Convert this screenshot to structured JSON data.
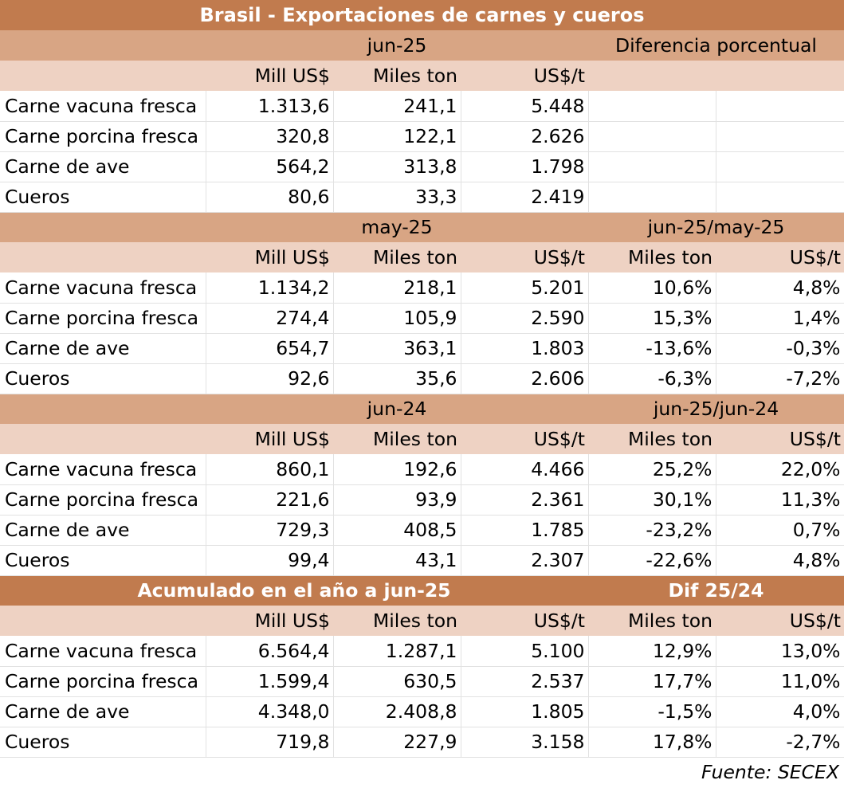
{
  "title": "Brasil - Exportaciones de carnes y cueros",
  "colors": {
    "title_bg": "#c17b4e",
    "section_bg": "#d8a584",
    "subheader_bg": "#eed2c3"
  },
  "sections": [
    {
      "period": "jun-25",
      "diff_label": "Diferencia porcentual",
      "columns": [
        "Mill US$",
        "Miles ton",
        "US$/t",
        "",
        ""
      ],
      "rows": [
        {
          "label": "Carne vacuna fresca",
          "values": [
            "1.313,6",
            "241,1",
            "5.448",
            "",
            ""
          ]
        },
        {
          "label": "Carne porcina fresca",
          "values": [
            "320,8",
            "122,1",
            "2.626",
            "",
            ""
          ]
        },
        {
          "label": "Carne de ave",
          "values": [
            "564,2",
            "313,8",
            "1.798",
            "",
            ""
          ]
        },
        {
          "label": "Cueros",
          "values": [
            "80,6",
            "33,3",
            "2.419",
            "",
            ""
          ]
        }
      ]
    },
    {
      "period": "may-25",
      "diff_label": "jun-25/may-25",
      "columns": [
        "Mill US$",
        "Miles ton",
        "US$/t",
        "Miles ton",
        "US$/t"
      ],
      "rows": [
        {
          "label": "Carne vacuna fresca",
          "values": [
            "1.134,2",
            "218,1",
            "5.201",
            "10,6%",
            "4,8%"
          ]
        },
        {
          "label": "Carne porcina fresca",
          "values": [
            "274,4",
            "105,9",
            "2.590",
            "15,3%",
            "1,4%"
          ]
        },
        {
          "label": "Carne de ave",
          "values": [
            "654,7",
            "363,1",
            "1.803",
            "-13,6%",
            "-0,3%"
          ]
        },
        {
          "label": "Cueros",
          "values": [
            "92,6",
            "35,6",
            "2.606",
            "-6,3%",
            "-7,2%"
          ]
        }
      ]
    },
    {
      "period": "jun-24",
      "diff_label": "jun-25/jun-24",
      "columns": [
        "Mill US$",
        "Miles ton",
        "US$/t",
        "Miles ton",
        "US$/t"
      ],
      "rows": [
        {
          "label": "Carne vacuna fresca",
          "values": [
            "860,1",
            "192,6",
            "4.466",
            "25,2%",
            "22,0%"
          ]
        },
        {
          "label": "Carne porcina fresca",
          "values": [
            "221,6",
            "93,9",
            "2.361",
            "30,1%",
            "11,3%"
          ]
        },
        {
          "label": "Carne de ave",
          "values": [
            "729,3",
            "408,5",
            "1.785",
            "-23,2%",
            "0,7%"
          ]
        },
        {
          "label": "Cueros",
          "values": [
            "99,4",
            "43,1",
            "2.307",
            "-22,6%",
            "4,8%"
          ]
        }
      ]
    },
    {
      "period": "Acumulado en el año a jun-25",
      "diff_label": "Dif 25/24",
      "columns": [
        "Mill US$",
        "Miles ton",
        "US$/t",
        "Miles ton",
        "US$/t"
      ],
      "rows": [
        {
          "label": "Carne vacuna fresca",
          "values": [
            "6.564,4",
            "1.287,1",
            "5.100",
            "12,9%",
            "13,0%"
          ]
        },
        {
          "label": "Carne porcina fresca",
          "values": [
            "1.599,4",
            "630,5",
            "2.537",
            "17,7%",
            "11,0%"
          ]
        },
        {
          "label": "Carne de ave",
          "values": [
            "4.348,0",
            "2.408,8",
            "1.805",
            "-1,5%",
            "4,0%"
          ]
        },
        {
          "label": "Cueros",
          "values": [
            "719,8",
            "227,9",
            "3.158",
            "17,8%",
            "-2,7%"
          ]
        }
      ]
    }
  ],
  "source": "Fuente: SECEX",
  "chart_data": {
    "type": "table",
    "title": "Brasil - Exportaciones de carnes y cueros",
    "columns": [
      "",
      "Mill US$",
      "Miles ton",
      "US$/t",
      "Miles ton",
      "US$/t"
    ],
    "categories": [
      "Carne vacuna fresca",
      "Carne porcina fresca",
      "Carne de ave",
      "Cueros"
    ],
    "blocks": [
      {
        "period": "jun-25",
        "mill_usd": [
          1313.6,
          320.8,
          564.2,
          80.6
        ],
        "miles_ton": [
          241.1,
          122.1,
          313.8,
          33.3
        ],
        "usd_t": [
          5448,
          2626,
          1798,
          2419
        ]
      },
      {
        "period": "may-25",
        "mill_usd": [
          1134.2,
          274.4,
          654.7,
          92.6
        ],
        "miles_ton": [
          218.1,
          105.9,
          363.1,
          35.6
        ],
        "usd_t": [
          5201,
          2590,
          1803,
          2606
        ],
        "diff_label": "jun-25/may-25",
        "diff_miles_ton_pct": [
          10.6,
          15.3,
          -13.6,
          -6.3
        ],
        "diff_usd_t_pct": [
          4.8,
          1.4,
          -0.3,
          -7.2
        ]
      },
      {
        "period": "jun-24",
        "mill_usd": [
          860.1,
          221.6,
          729.3,
          99.4
        ],
        "miles_ton": [
          192.6,
          93.9,
          408.5,
          43.1
        ],
        "usd_t": [
          4466,
          2361,
          1785,
          2307
        ],
        "diff_label": "jun-25/jun-24",
        "diff_miles_ton_pct": [
          25.2,
          30.1,
          -23.2,
          -22.6
        ],
        "diff_usd_t_pct": [
          22.0,
          11.3,
          0.7,
          4.8
        ]
      },
      {
        "period": "Acumulado en el año a jun-25",
        "mill_usd": [
          6564.4,
          1599.4,
          4348.0,
          719.8
        ],
        "miles_ton": [
          1287.1,
          630.5,
          2408.8,
          227.9
        ],
        "usd_t": [
          5100,
          2537,
          1805,
          3158
        ],
        "diff_label": "Dif 25/24",
        "diff_miles_ton_pct": [
          12.9,
          17.7,
          -1.5,
          17.8
        ],
        "diff_usd_t_pct": [
          13.0,
          11.0,
          4.0,
          -2.7
        ]
      }
    ]
  }
}
